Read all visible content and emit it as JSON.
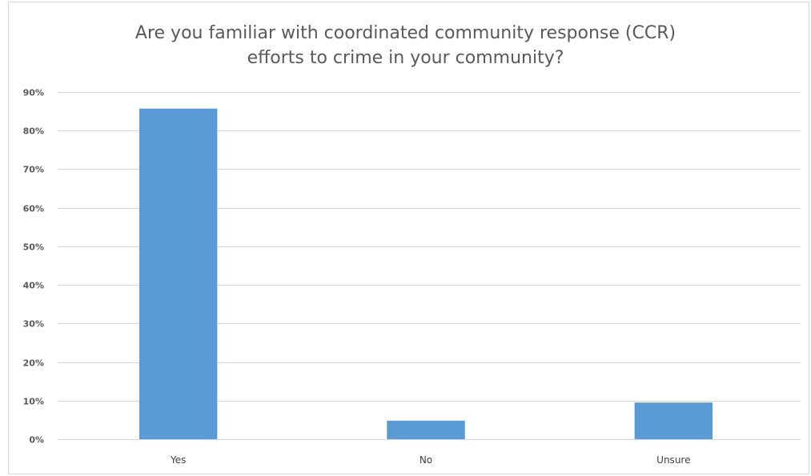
{
  "chart_data": {
    "type": "bar",
    "title_lines": [
      "Are you familiar with coordinated community response (CCR)",
      "efforts to crime in your community?"
    ],
    "categories": [
      "Yes",
      "No",
      "Unsure"
    ],
    "values": [
      85.7,
      4.8,
      9.5
    ],
    "ylim": [
      0,
      90
    ],
    "yticks": [
      0,
      10,
      20,
      30,
      40,
      50,
      60,
      70,
      80,
      90
    ],
    "ytick_labels": [
      "0%",
      "10%",
      "20%",
      "30%",
      "40%",
      "50%",
      "60%",
      "70%",
      "80%",
      "90%"
    ],
    "grid": true,
    "legend": "none",
    "colors": {
      "bar": "#5b9bd5",
      "grid": "#d9d9d9",
      "text": "#595959"
    }
  }
}
